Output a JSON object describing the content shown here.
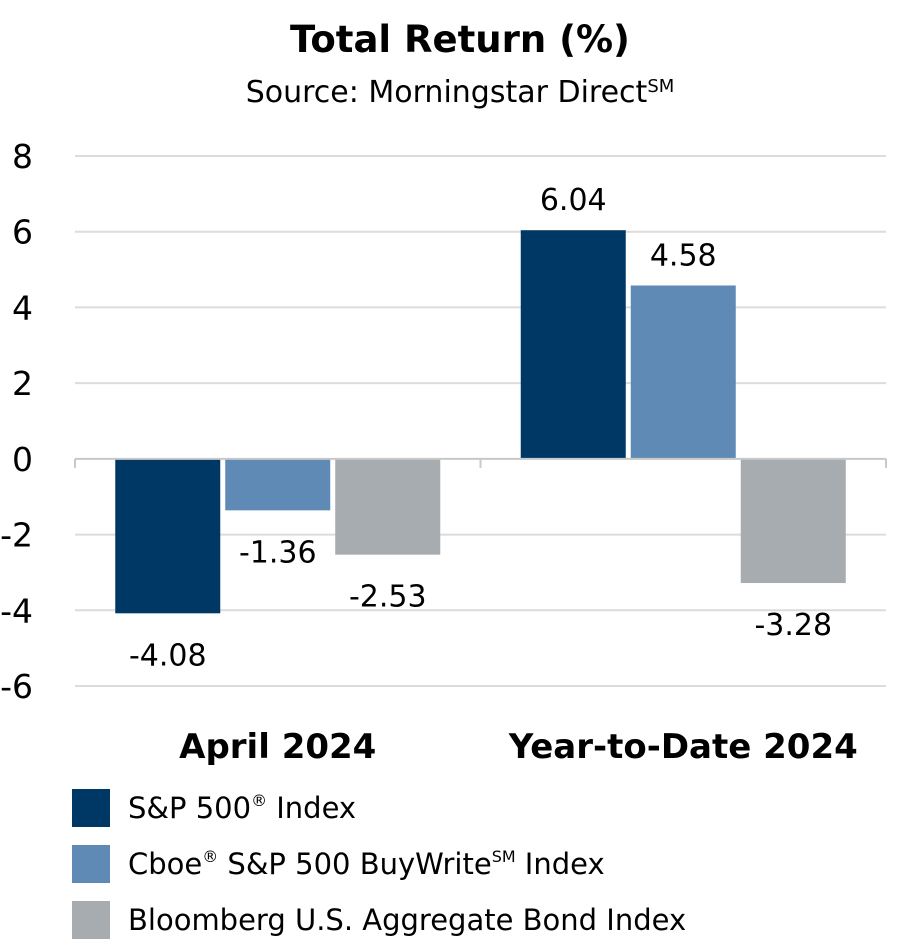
{
  "chart_data": {
    "type": "bar",
    "title": "Total Return (%)",
    "subtitle": "Source: Morningstar Direct",
    "subtitle_sup": "SM",
    "categories": [
      "April 2024",
      "Year-to-Date 2024"
    ],
    "series": [
      {
        "name": "S&P 500",
        "sup": "®",
        "suffix": " Index",
        "color": "#003865",
        "values": [
          -4.08,
          6.04
        ]
      },
      {
        "name": "Cboe",
        "sup": "®",
        "suffix": " S&P 500 BuyWrite",
        "sup2": "SM",
        "suffix2": " Index",
        "color": "#5f8ab5",
        "values": [
          -1.36,
          4.58
        ]
      },
      {
        "name": "Bloomberg U.S. Aggregate Bond Index",
        "color": "#a6acaf",
        "values": [
          -2.53,
          -3.28
        ]
      }
    ],
    "data_labels": [
      [
        "-4.08",
        "6.04"
      ],
      [
        "-1.36",
        "4.58"
      ],
      [
        "-2.53",
        "-3.28"
      ]
    ],
    "yticks": [
      8,
      6,
      4,
      2,
      0,
      -2,
      -4,
      -6
    ],
    "ytick_labels": [
      "8",
      "6",
      "4",
      "2",
      "0",
      "-2",
      "-4",
      "-6"
    ],
    "ylim": [
      -6,
      8
    ],
    "grid": true,
    "legend_position": "bottom"
  }
}
